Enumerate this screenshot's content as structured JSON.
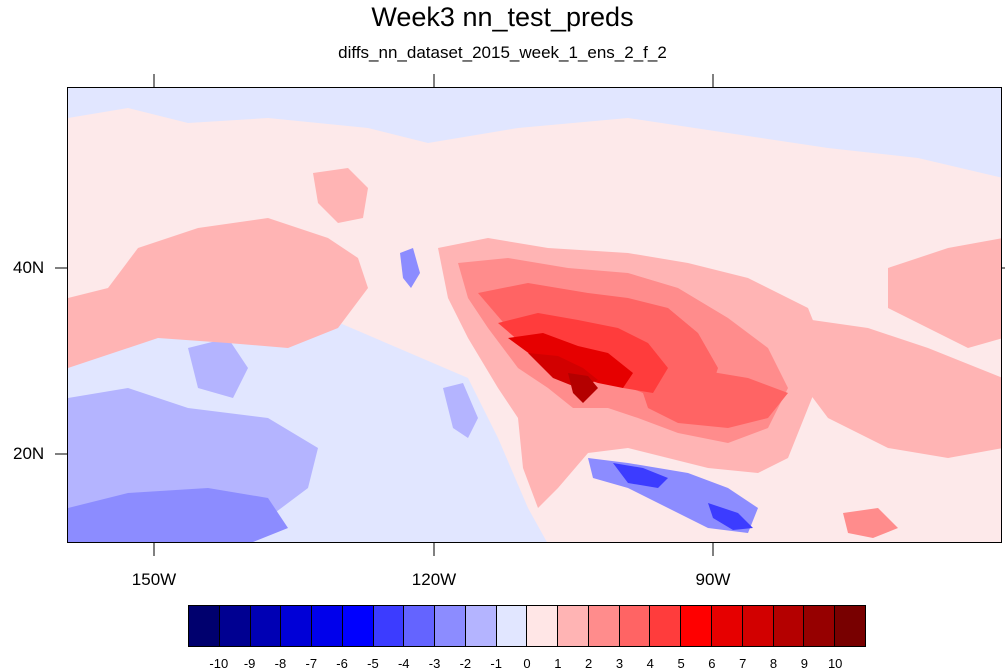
{
  "title": "Week3 nn_test_preds",
  "subtitle": "diffs_nn_dataset_2015_week_1_ens_2_f_2",
  "axes": {
    "lon_labels": [
      "150W",
      "120W",
      "90W"
    ],
    "lat_labels": [
      "40N",
      "20N"
    ]
  },
  "colorbar": {
    "labels": [
      "-10",
      "-9",
      "-8",
      "-7",
      "-6",
      "-5",
      "-4",
      "-3",
      "-2",
      "-1",
      "0",
      "1",
      "2",
      "3",
      "4",
      "5",
      "6",
      "7",
      "8",
      "9",
      "10"
    ],
    "colors": [
      "#00006e",
      "#000091",
      "#0000b4",
      "#0000d7",
      "#0000eb",
      "#0000ff",
      "#3c3cff",
      "#6464ff",
      "#8c8cff",
      "#b4b4ff",
      "#e1e6ff",
      "#ffe6e6",
      "#ffb4b4",
      "#ff8c8c",
      "#ff6464",
      "#ff3c3c",
      "#ff0000",
      "#e60000",
      "#d20000",
      "#b40000",
      "#960000",
      "#780000"
    ]
  }
}
